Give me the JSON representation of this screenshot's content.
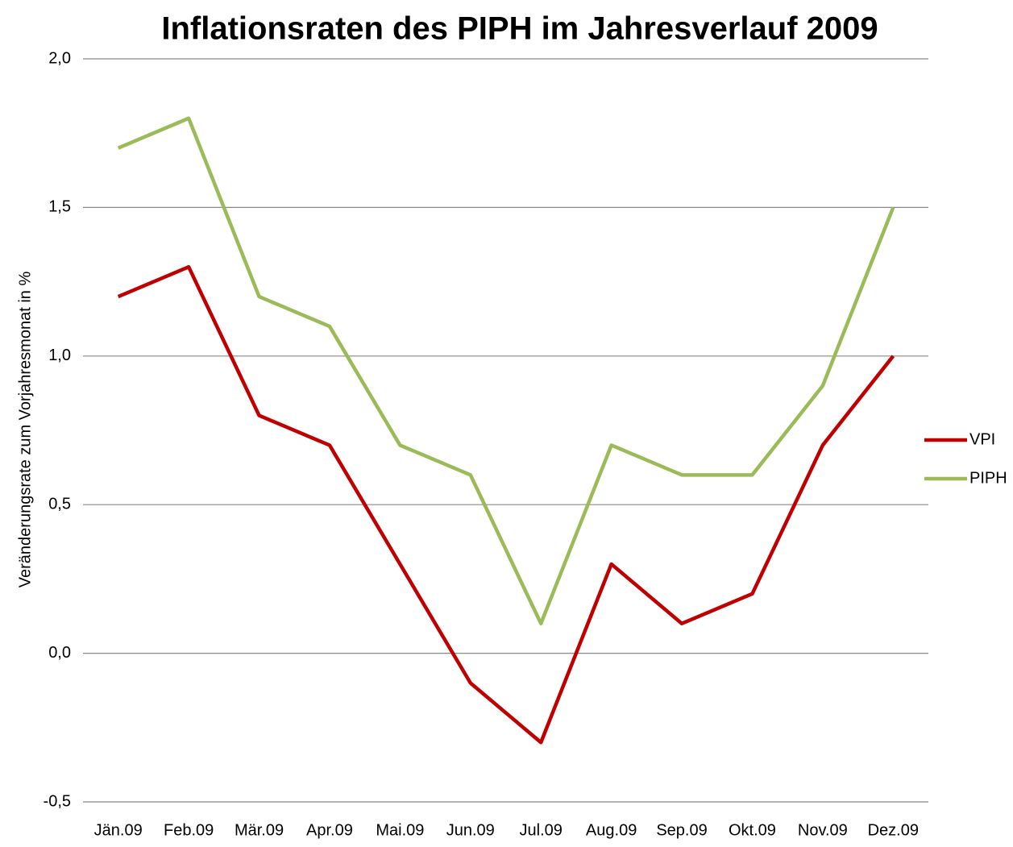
{
  "chart_data": {
    "type": "line",
    "title": "Inflationsraten des PIPH im Jahresverlauf 2009",
    "y_label": "Veränderungsrate zum Vorjahresmonat in %",
    "categories": [
      "Jän.09",
      "Feb.09",
      "Mär.09",
      "Apr.09",
      "Mai.09",
      "Jun.09",
      "Jul.09",
      "Aug.09",
      "Sep.09",
      "Okt.09",
      "Nov.09",
      "Dez.09"
    ],
    "series": [
      {
        "name": "VPI",
        "color": "#c00000",
        "values": [
          1.2,
          1.3,
          0.8,
          0.7,
          0.3,
          -0.1,
          -0.3,
          0.3,
          0.1,
          0.2,
          0.7,
          1.0
        ]
      },
      {
        "name": "PIPH",
        "color": "#9bbb59",
        "values": [
          1.7,
          1.8,
          1.2,
          1.1,
          0.7,
          0.6,
          0.1,
          0.7,
          0.6,
          0.6,
          0.9,
          1.5
        ]
      }
    ],
    "ylim": [
      -0.5,
      2.0
    ],
    "yticks": [
      {
        "value": -0.5,
        "label": "-0,5"
      },
      {
        "value": 0,
        "label": "0,0"
      },
      {
        "value": 0.5,
        "label": "0,5"
      },
      {
        "value": 1.0,
        "label": "1,0"
      },
      {
        "value": 1.5,
        "label": "1,5"
      },
      {
        "value": 2.0,
        "label": "2,0"
      }
    ],
    "grid": true,
    "legend": "right"
  }
}
